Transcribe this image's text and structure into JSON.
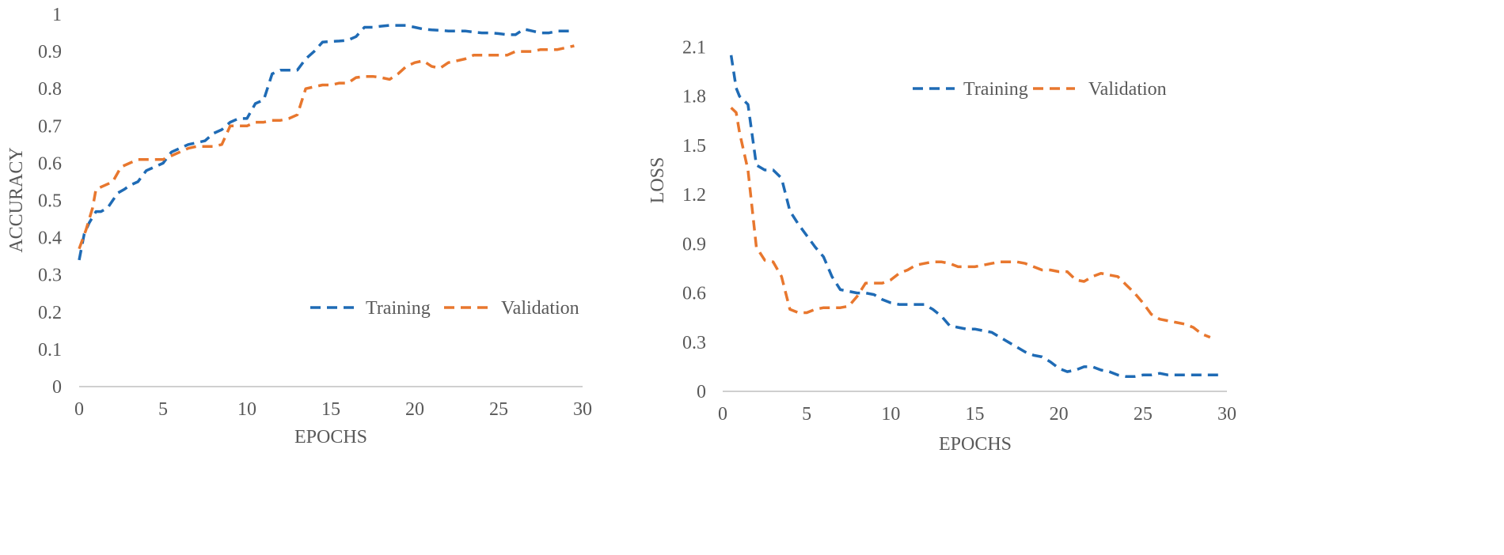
{
  "chart_data": [
    {
      "type": "line",
      "xlabel": "EPOCHS",
      "ylabel": "ACCURACY",
      "xlim": [
        0,
        30
      ],
      "ylim": [
        0,
        1
      ],
      "xticks": [
        0,
        5,
        10,
        15,
        20,
        25,
        30
      ],
      "yticks": [
        0,
        0.1,
        0.2,
        0.3,
        0.4,
        0.5,
        0.6,
        0.7,
        0.8,
        0.9,
        1
      ],
      "ytick_labels": [
        "0",
        "0.1",
        "0.2",
        "0.3",
        "0.4",
        "0.5",
        "0.6",
        "0.7",
        "0.8",
        "0.9",
        "1"
      ],
      "grid": false,
      "legend_position": "bottom-right",
      "series": [
        {
          "name": "Training",
          "color": "#1f6bb5",
          "x": [
            0,
            0.3,
            0.6,
            1,
            1.3,
            1.7,
            2,
            2.3,
            2.7,
            3,
            3.5,
            4,
            4.5,
            5,
            5.5,
            6,
            6.5,
            7,
            7.5,
            8,
            8.5,
            9,
            9.5,
            10,
            10.5,
            11,
            11.5,
            12,
            12.5,
            13,
            13.5,
            14,
            14.5,
            15,
            15.5,
            16,
            16.5,
            17,
            17.5,
            18,
            18.5,
            19,
            19.5,
            20,
            20.5,
            21,
            21.5,
            22,
            22.5,
            23,
            23.5,
            24,
            24.5,
            25,
            25.5,
            26,
            26.5,
            27,
            27.5,
            28,
            28.5,
            29,
            29.5
          ],
          "y": [
            0.34,
            0.41,
            0.44,
            0.47,
            0.47,
            0.48,
            0.5,
            0.52,
            0.53,
            0.54,
            0.55,
            0.58,
            0.59,
            0.6,
            0.63,
            0.64,
            0.65,
            0.655,
            0.66,
            0.68,
            0.69,
            0.71,
            0.72,
            0.72,
            0.76,
            0.77,
            0.84,
            0.85,
            0.85,
            0.85,
            0.88,
            0.9,
            0.925,
            0.927,
            0.928,
            0.93,
            0.94,
            0.965,
            0.965,
            0.968,
            0.97,
            0.97,
            0.97,
            0.965,
            0.96,
            0.958,
            0.957,
            0.955,
            0.955,
            0.955,
            0.952,
            0.95,
            0.95,
            0.948,
            0.945,
            0.945,
            0.96,
            0.955,
            0.95,
            0.95,
            0.955,
            0.955,
            0.955
          ]
        },
        {
          "name": "Validation",
          "color": "#e8772e",
          "x": [
            0,
            0.4,
            0.8,
            1,
            1.5,
            2,
            2.5,
            3,
            3.5,
            4,
            4.5,
            5,
            5.5,
            6,
            6.5,
            7,
            7.5,
            8,
            8.5,
            9,
            9.5,
            10,
            10.5,
            11,
            11.5,
            12,
            12.5,
            13,
            13.5,
            14,
            14.5,
            15,
            15.5,
            16,
            16.5,
            17,
            17.5,
            18,
            18.5,
            19,
            19.5,
            20,
            20.5,
            21,
            21.5,
            22,
            22.5,
            23,
            23.5,
            24,
            24.5,
            25,
            25.5,
            26,
            26.5,
            27,
            27.5,
            28,
            28.5,
            29,
            29.5
          ],
          "y": [
            0.37,
            0.42,
            0.48,
            0.53,
            0.54,
            0.55,
            0.59,
            0.6,
            0.61,
            0.61,
            0.61,
            0.61,
            0.62,
            0.63,
            0.64,
            0.645,
            0.645,
            0.645,
            0.65,
            0.7,
            0.7,
            0.7,
            0.71,
            0.71,
            0.715,
            0.715,
            0.72,
            0.73,
            0.8,
            0.805,
            0.81,
            0.81,
            0.815,
            0.815,
            0.83,
            0.833,
            0.833,
            0.83,
            0.825,
            0.84,
            0.86,
            0.87,
            0.875,
            0.86,
            0.855,
            0.87,
            0.875,
            0.88,
            0.89,
            0.89,
            0.89,
            0.89,
            0.89,
            0.9,
            0.9,
            0.9,
            0.905,
            0.905,
            0.905,
            0.91,
            0.915
          ]
        }
      ]
    },
    {
      "type": "line",
      "xlabel": "EPOCHS",
      "ylabel": "LOSS",
      "xlim": [
        0,
        30
      ],
      "ylim": [
        0,
        2.3
      ],
      "xticks": [
        0,
        5,
        10,
        15,
        20,
        25,
        30
      ],
      "yticks": [
        0,
        0.3,
        0.6,
        0.9,
        1.2,
        1.5,
        1.8,
        2.1
      ],
      "ytick_labels": [
        "0",
        "0.3",
        "0.6",
        "0.9",
        "1.2",
        "1.5",
        "1.8",
        "2.1"
      ],
      "grid": false,
      "legend_position": "top-right",
      "series": [
        {
          "name": "Training",
          "color": "#1f6bb5",
          "x": [
            0.5,
            0.8,
            1,
            1.5,
            2,
            2.5,
            3,
            3.5,
            4,
            4.5,
            5,
            5.5,
            6,
            6.5,
            7,
            7.5,
            8,
            8.5,
            9,
            9.5,
            10,
            10.5,
            11,
            11.5,
            12,
            12.5,
            13,
            13.5,
            14,
            14.5,
            15,
            15.5,
            16,
            16.5,
            17,
            17.5,
            18,
            18.5,
            19,
            19.5,
            20,
            20.5,
            21,
            21.5,
            22,
            22.5,
            23,
            23.5,
            24,
            24.5,
            25,
            25.5,
            26,
            26.5,
            27,
            27.5,
            28,
            28.5,
            29,
            29.5
          ],
          "y": [
            2.05,
            1.85,
            1.8,
            1.75,
            1.38,
            1.35,
            1.35,
            1.3,
            1.1,
            1.02,
            0.95,
            0.88,
            0.82,
            0.7,
            0.62,
            0.61,
            0.6,
            0.6,
            0.59,
            0.56,
            0.54,
            0.53,
            0.53,
            0.53,
            0.53,
            0.5,
            0.46,
            0.4,
            0.39,
            0.38,
            0.38,
            0.37,
            0.36,
            0.33,
            0.3,
            0.27,
            0.24,
            0.22,
            0.21,
            0.18,
            0.14,
            0.12,
            0.13,
            0.15,
            0.15,
            0.13,
            0.12,
            0.1,
            0.09,
            0.09,
            0.1,
            0.1,
            0.11,
            0.1,
            0.1,
            0.1,
            0.1,
            0.1,
            0.1,
            0.1
          ]
        },
        {
          "name": "Validation",
          "color": "#e8772e",
          "x": [
            0.5,
            0.8,
            1,
            1.5,
            2,
            2.5,
            3,
            3.5,
            4,
            4.5,
            5,
            5.5,
            6,
            6.5,
            7,
            7.5,
            8,
            8.5,
            9,
            9.5,
            10,
            10.5,
            11,
            11.5,
            12,
            12.5,
            13,
            13.5,
            14,
            14.5,
            15,
            15.5,
            16,
            16.5,
            17,
            17.5,
            18,
            18.5,
            19,
            19.5,
            20,
            20.5,
            21,
            21.5,
            22,
            22.5,
            23,
            23.5,
            24,
            24.5,
            25,
            25.5,
            26,
            26.5,
            27,
            27.5,
            28,
            28.5,
            29
          ],
          "y": [
            1.73,
            1.7,
            1.58,
            1.35,
            0.88,
            0.8,
            0.79,
            0.7,
            0.5,
            0.48,
            0.48,
            0.5,
            0.51,
            0.51,
            0.51,
            0.52,
            0.58,
            0.66,
            0.66,
            0.66,
            0.68,
            0.72,
            0.74,
            0.77,
            0.78,
            0.79,
            0.79,
            0.78,
            0.76,
            0.76,
            0.76,
            0.77,
            0.78,
            0.79,
            0.79,
            0.79,
            0.78,
            0.76,
            0.74,
            0.74,
            0.73,
            0.73,
            0.68,
            0.67,
            0.7,
            0.72,
            0.71,
            0.7,
            0.65,
            0.6,
            0.54,
            0.47,
            0.44,
            0.43,
            0.42,
            0.41,
            0.39,
            0.35,
            0.33
          ]
        }
      ]
    }
  ]
}
